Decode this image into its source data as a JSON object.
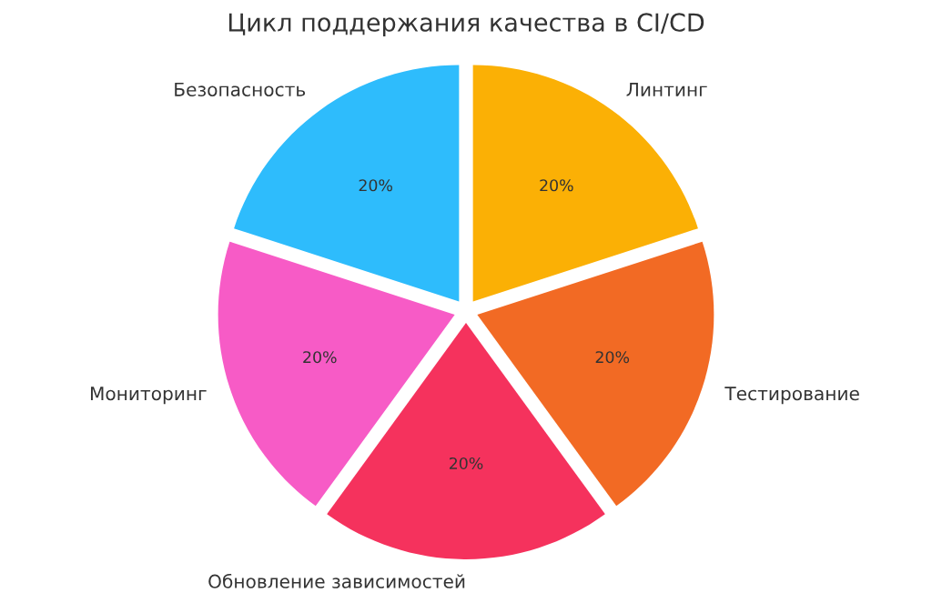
{
  "chart_data": {
    "type": "pie",
    "title": "Цикл поддержания качества в CI/CD",
    "categories": [
      "Линтинг",
      "Тестирование",
      "Обновление зависимостей",
      "Мониторинг",
      "Безопасность"
    ],
    "values": [
      20,
      20,
      20,
      20,
      20
    ],
    "colors": [
      "#fbb005",
      "#f26a24",
      "#f5325d",
      "#f75bc6",
      "#2ebcfc"
    ],
    "value_labels": [
      "20%",
      "20%",
      "20%",
      "20%",
      "20%"
    ]
  }
}
